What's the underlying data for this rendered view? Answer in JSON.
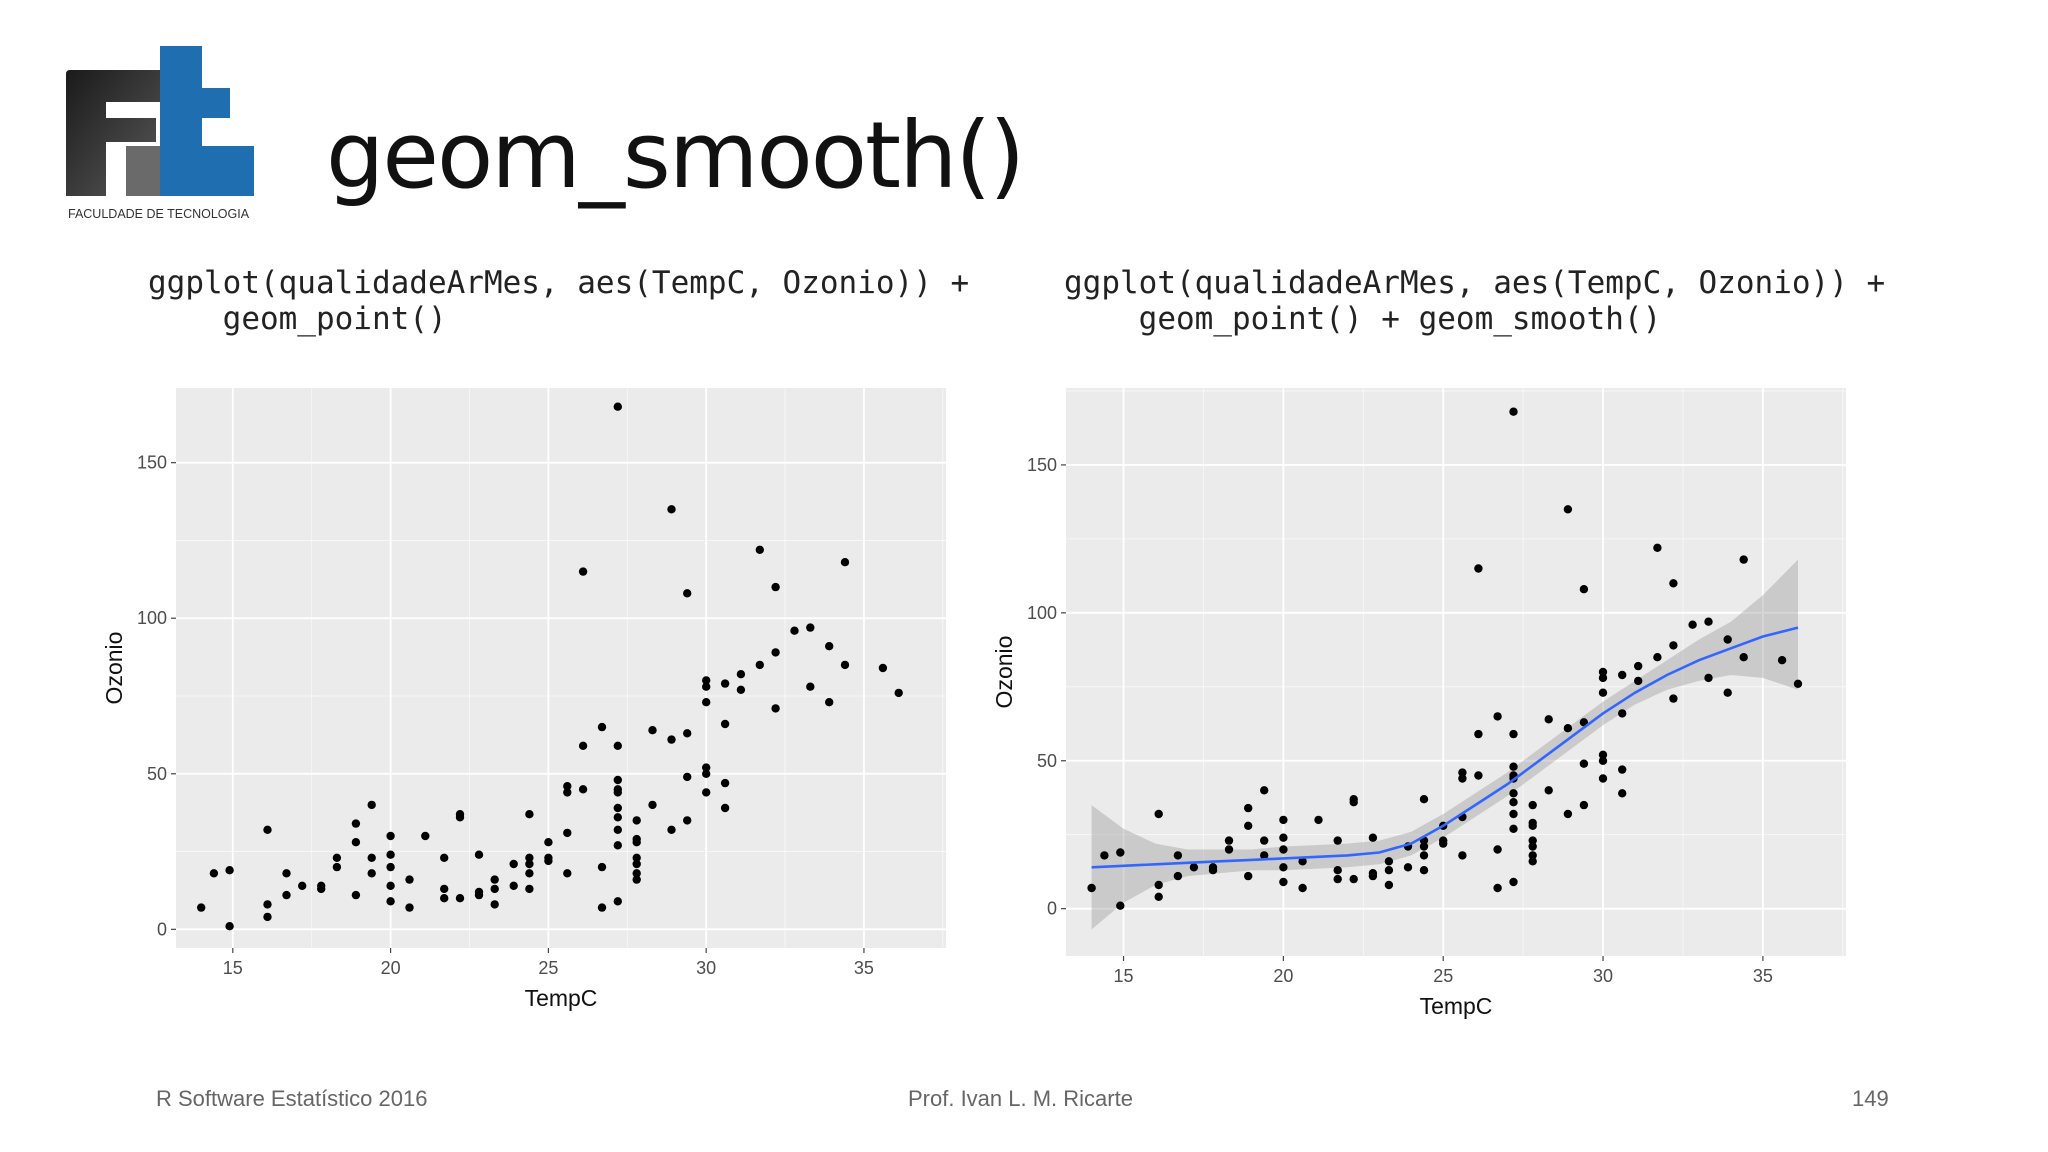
{
  "slide": {
    "title": "geom_smooth()",
    "logo_text": "FACULDADE DE TECNOLOGIA",
    "code_left": "ggplot(qualidadeArMes, aes(TempC, Ozonio)) +\n    geom_point()",
    "code_right": "ggplot(qualidadeArMes, aes(TempC, Ozonio)) +\n    geom_point() + geom_smooth()",
    "footer": {
      "left": "R Software Estatístico 2016",
      "center": "Prof. Ivan L. M. Ricarte",
      "right": "149"
    }
  },
  "colors": {
    "panel": "#ebebeb",
    "grid": "#ffffff",
    "point": "#000000",
    "smooth": "#3366ff",
    "ribbon": "#999999"
  },
  "chart_data": [
    {
      "type": "scatter",
      "title": "",
      "xlabel": "TempC",
      "ylabel": "Ozonio",
      "xlim": [
        13.2,
        37.6
      ],
      "ylim": [
        -6,
        174
      ],
      "xticks": [
        15,
        20,
        25,
        30,
        35
      ],
      "yticks": [
        0,
        50,
        100,
        150
      ],
      "grid": true,
      "points": [
        [
          14,
          7
        ],
        [
          14.4,
          18
        ],
        [
          14.9,
          19
        ],
        [
          14.9,
          1
        ],
        [
          16.1,
          32
        ],
        [
          16.1,
          8
        ],
        [
          16.1,
          4
        ],
        [
          16.7,
          18
        ],
        [
          16.7,
          11
        ],
        [
          17.2,
          14
        ],
        [
          17.8,
          13
        ],
        [
          17.8,
          14
        ],
        [
          18.3,
          23
        ],
        [
          18.3,
          20
        ],
        [
          18.9,
          34
        ],
        [
          18.9,
          28
        ],
        [
          18.9,
          11
        ],
        [
          19.4,
          40
        ],
        [
          19.4,
          23
        ],
        [
          19.4,
          18
        ],
        [
          20,
          30
        ],
        [
          20,
          24
        ],
        [
          20,
          20
        ],
        [
          20,
          14
        ],
        [
          20,
          9
        ],
        [
          20.6,
          16
        ],
        [
          20.6,
          7
        ],
        [
          21.1,
          30
        ],
        [
          21.7,
          23
        ],
        [
          21.7,
          13
        ],
        [
          21.7,
          10
        ],
        [
          22.2,
          37
        ],
        [
          22.2,
          36
        ],
        [
          22.2,
          10
        ],
        [
          22.8,
          24
        ],
        [
          22.8,
          12
        ],
        [
          22.8,
          11
        ],
        [
          23.3,
          16
        ],
        [
          23.3,
          13
        ],
        [
          23.3,
          8
        ],
        [
          23.9,
          21
        ],
        [
          23.9,
          14
        ],
        [
          24.4,
          37
        ],
        [
          24.4,
          23
        ],
        [
          24.4,
          21
        ],
        [
          24.4,
          18
        ],
        [
          24.4,
          13
        ],
        [
          25,
          28
        ],
        [
          25,
          23
        ],
        [
          25,
          22
        ],
        [
          25.6,
          46
        ],
        [
          25.6,
          44
        ],
        [
          25.6,
          31
        ],
        [
          25.6,
          18
        ],
        [
          26.1,
          115
        ],
        [
          26.1,
          59
        ],
        [
          26.1,
          45
        ],
        [
          26.7,
          65
        ],
        [
          26.7,
          20
        ],
        [
          26.7,
          7
        ],
        [
          27.2,
          168
        ],
        [
          27.2,
          59
        ],
        [
          27.2,
          48
        ],
        [
          27.2,
          45
        ],
        [
          27.2,
          44
        ],
        [
          27.2,
          39
        ],
        [
          27.2,
          36
        ],
        [
          27.2,
          32
        ],
        [
          27.2,
          27
        ],
        [
          27.2,
          9
        ],
        [
          27.8,
          35
        ],
        [
          27.8,
          29
        ],
        [
          27.8,
          28
        ],
        [
          27.8,
          23
        ],
        [
          27.8,
          21
        ],
        [
          27.8,
          18
        ],
        [
          27.8,
          16
        ],
        [
          28.3,
          64
        ],
        [
          28.3,
          40
        ],
        [
          28.9,
          135
        ],
        [
          28.9,
          61
        ],
        [
          28.9,
          32
        ],
        [
          29.4,
          108
        ],
        [
          29.4,
          63
        ],
        [
          29.4,
          49
        ],
        [
          29.4,
          35
        ],
        [
          30,
          80
        ],
        [
          30,
          78
        ],
        [
          30,
          73
        ],
        [
          30,
          52
        ],
        [
          30,
          50
        ],
        [
          30,
          44
        ],
        [
          30.6,
          79
        ],
        [
          30.6,
          66
        ],
        [
          30.6,
          47
        ],
        [
          30.6,
          39
        ],
        [
          31.1,
          82
        ],
        [
          31.1,
          77
        ],
        [
          31.7,
          122
        ],
        [
          31.7,
          85
        ],
        [
          32.2,
          110
        ],
        [
          32.2,
          89
        ],
        [
          32.2,
          71
        ],
        [
          32.8,
          96
        ],
        [
          33.3,
          97
        ],
        [
          33.3,
          78
        ],
        [
          33.9,
          91
        ],
        [
          33.9,
          73
        ],
        [
          34.4,
          118
        ],
        [
          34.4,
          85
        ],
        [
          35.6,
          84
        ],
        [
          36.1,
          76
        ]
      ]
    },
    {
      "type": "scatter",
      "title": "",
      "xlabel": "TempC",
      "ylabel": "Ozonio",
      "xlim": [
        13.2,
        37.6
      ],
      "ylim": [
        -16,
        176
      ],
      "xticks": [
        15,
        20,
        25,
        30,
        35
      ],
      "yticks": [
        0,
        50,
        100,
        150
      ],
      "grid": true,
      "points_same_as": "chart 1",
      "smooth": {
        "method": "loess",
        "x": [
          14,
          15,
          16,
          17,
          18,
          19,
          20,
          21,
          22,
          23,
          24,
          25,
          26,
          27,
          28,
          29,
          30,
          31,
          32,
          33,
          34,
          35,
          36.1
        ],
        "y": [
          14,
          14.5,
          15,
          15.5,
          16,
          16.5,
          17,
          17.5,
          18,
          19,
          22,
          28,
          35,
          42,
          50,
          58,
          66,
          73,
          79,
          84,
          88,
          92,
          95
        ],
        "lower": [
          -7,
          2,
          8,
          11,
          12,
          13,
          13,
          13.5,
          14,
          15,
          18,
          24,
          31,
          38,
          46,
          54,
          62,
          69,
          74,
          77,
          79,
          78,
          74
        ],
        "upper": [
          35,
          27,
          22,
          20,
          20,
          20,
          21,
          21.5,
          22,
          23,
          26,
          32,
          39,
          46,
          54,
          62,
          70,
          77,
          84,
          91,
          97,
          106,
          118
        ]
      }
    }
  ]
}
